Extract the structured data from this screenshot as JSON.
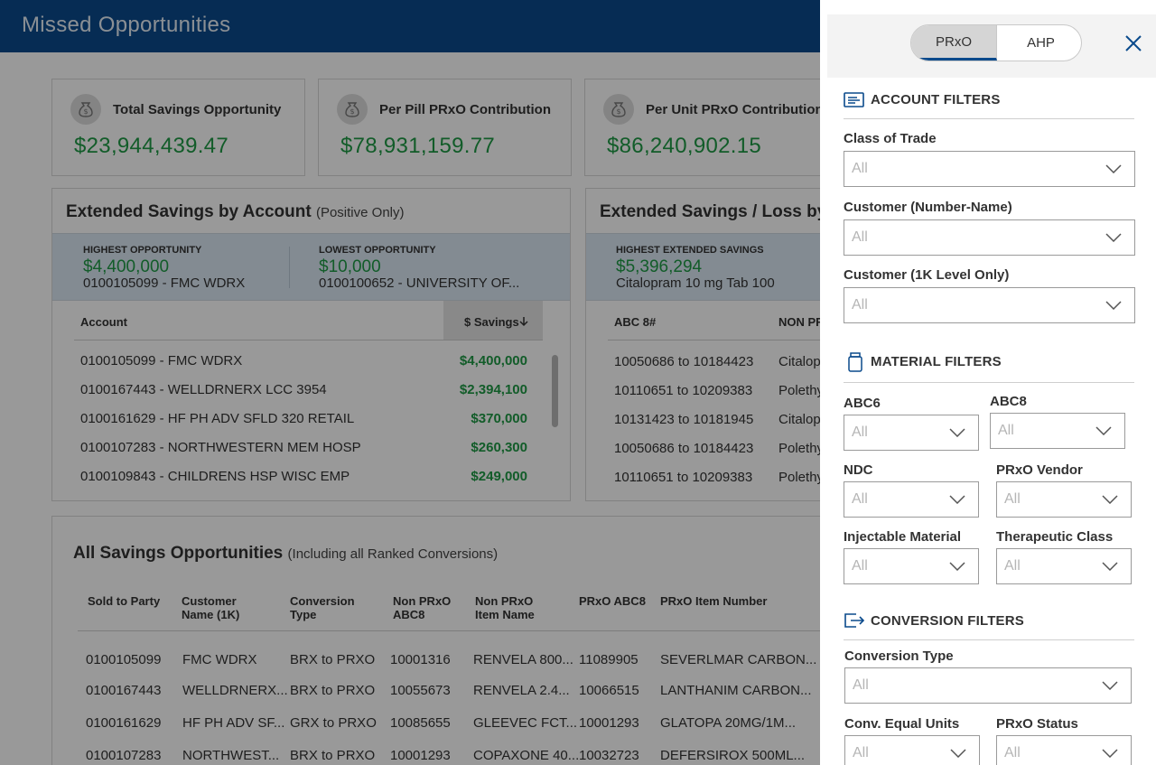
{
  "app": {
    "title": "Missed Opportunities"
  },
  "kpis": [
    {
      "label": "Total Savings Opportunity",
      "value": "$23,944,439.47",
      "icon": "money-bag-icon"
    },
    {
      "label": "Per Pill PRxO Contribution",
      "value": "$78,931,159.77",
      "icon": "money-bag-icon"
    },
    {
      "label": "Per Unit PRxO Contribution",
      "value": "$86,240,902.15",
      "icon": "money-bag-icon"
    }
  ],
  "account_panel": {
    "title": "Extended Savings by Account",
    "subtitle": "(Positive Only)",
    "highest": {
      "label": "HIGHEST OPPORTUNITY",
      "value": "$4,400,000",
      "desc": "0100105099 - FMC WDRX"
    },
    "lowest": {
      "label": "LOWEST OPPORTUNITY",
      "value": "$10,000",
      "desc": "0100100652 - UNIVERSITY OF..."
    },
    "col_account": "Account",
    "col_savings": "$ Savings",
    "rows": [
      {
        "account": "0100105099 - FMC WDRX",
        "savings": "$4,400,000"
      },
      {
        "account": "0100167443 - WELLDRNERX LCC 3954",
        "savings": "$2,394,100"
      },
      {
        "account": "0100161629 - HF PH ADV SFLD 320 RETAIL",
        "savings": "$370,000"
      },
      {
        "account": "0100107283 - NORTHWESTERN MEM HOSP",
        "savings": "$260,300"
      },
      {
        "account": "0100109843 - CHILDRENS HSP WISC EMP",
        "savings": "$249,000"
      }
    ]
  },
  "loss_panel": {
    "title": "Extended Savings / Loss by",
    "highest": {
      "label": "HIGHEST EXTENDED SAVINGS",
      "value": "$5,396,294",
      "desc": "Citalopram 10 mg Tab 100"
    },
    "col_abc": "ABC 8#",
    "col_non": "NON PR",
    "rows": [
      {
        "abc": "10050686 to 10184423",
        "name": "Citalop"
      },
      {
        "abc": "10110651 to 10209383",
        "name": "Polethy"
      },
      {
        "abc": "10131423 to 10181945",
        "name": "Citalop"
      },
      {
        "abc": "10050686 to 10184423",
        "name": "Polethy"
      },
      {
        "abc": "10110651 to 10209383",
        "name": "Polethy"
      }
    ]
  },
  "all_savings": {
    "title": "All Savings Opportunities",
    "subtitle": "(Including all Ranked Conversions)",
    "headers": [
      [
        "Sold to Party"
      ],
      [
        "Customer",
        "Name (1K)"
      ],
      [
        "Conversion",
        "Type"
      ],
      [
        "Non PRxO",
        "ABC8"
      ],
      [
        "Non PRxO",
        "Item Name"
      ],
      [
        "PRxO ABC8"
      ],
      [
        "PRxO Item Number"
      ]
    ],
    "rows": [
      [
        "0100105099",
        "FMC WDRX",
        "BRX to PRXO",
        "10001316",
        "RENVELA 800...",
        "11089905",
        "SEVERLMAR CARBON..."
      ],
      [
        "0100167443",
        "WELLDRNERX...",
        "BRX to PRXO",
        "10055673",
        "RENVELA 2.4...",
        "10066515",
        "LANTHANIM CARBON..."
      ],
      [
        "0100161629",
        "HF PH ADV SF...",
        "GRX to PRXO",
        "10085655",
        "GLEEVEC FCT...",
        "10001293",
        "GLATOPA 20MG/1M..."
      ],
      [
        "0100107283",
        "NORTHWEST...",
        "BRX to PRXO",
        "10001293",
        "COPAXONE 40...",
        "10032723",
        "DEFERSIROX 500ML..."
      ]
    ]
  },
  "drawer": {
    "toggle": {
      "active": "PRxO",
      "inactive": "AHP"
    },
    "close_icon": "close-icon",
    "sections": {
      "account": "ACCOUNT FILTERS",
      "material": "MATERIAL FILTERS",
      "conversion": "CONVERSION FILTERS"
    },
    "filters": {
      "class_of_trade": {
        "label": "Class of Trade",
        "value": "All"
      },
      "customer_number_name": {
        "label": "Customer (Number-Name)",
        "value": "All"
      },
      "customer_1k": {
        "label": "Customer (1K Level Only)",
        "value": "All"
      },
      "abc6": {
        "label": "ABC6",
        "value": "All"
      },
      "abc8": {
        "label": "ABC8",
        "value": "All"
      },
      "ndc": {
        "label": "NDC",
        "value": "All"
      },
      "prxo_vendor": {
        "label": "PRxO Vendor",
        "value": "All"
      },
      "injectable_material": {
        "label": "Injectable Material",
        "value": "All"
      },
      "therapeutic_class": {
        "label": "Therapeutic Class",
        "value": "All"
      },
      "conversion_type": {
        "label": "Conversion Type",
        "value": "All"
      },
      "conv_equal_units": {
        "label": "Conv. Equal Units",
        "value": "All"
      },
      "prxo_status": {
        "label": "PRxO Status",
        "value": "All"
      }
    }
  },
  "colors": {
    "brand": "#0a4a8c",
    "positive": "#1e9a45",
    "band": "#dbe8f4"
  }
}
